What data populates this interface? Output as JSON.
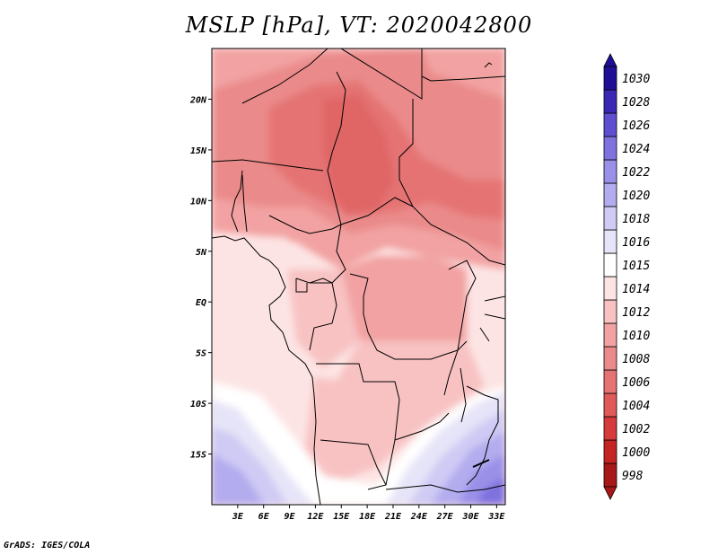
{
  "title": "MSLP [hPa], VT: 2020042800",
  "footer": "GrADS: IGES/COLA",
  "colorbar": {
    "levels": [
      "998",
      "1000",
      "1002",
      "1004",
      "1006",
      "1008",
      "1010",
      "1012",
      "1014",
      "1015",
      "1016",
      "1018",
      "1020",
      "1022",
      "1024",
      "1026",
      "1028",
      "1030"
    ],
    "colors": [
      "#a81818",
      "#c42424",
      "#d63a3a",
      "#e05a5a",
      "#e57373",
      "#ea8a8a",
      "#f2a2a2",
      "#f8c2c2",
      "#fde4e4",
      "#ffffff",
      "#e6e4f8",
      "#cfcbf4",
      "#b3acee",
      "#9a90e8",
      "#7f71de",
      "#5e4ed0",
      "#3a28b4",
      "#1f0f96"
    ]
  },
  "map": {
    "lat_labels": [
      "20N",
      "15N",
      "10N",
      "5N",
      "EQ",
      "5S",
      "10S",
      "15S"
    ],
    "lat_values": [
      20,
      15,
      10,
      5,
      0,
      -5,
      -10,
      -15
    ],
    "lon_labels": [
      "3E",
      "6E",
      "9E",
      "12E",
      "15E",
      "18E",
      "21E",
      "24E",
      "27E",
      "30E",
      "33E"
    ],
    "lon_values": [
      3,
      6,
      9,
      12,
      15,
      18,
      21,
      24,
      27,
      30,
      33
    ],
    "lon_range": [
      0,
      34
    ],
    "lat_range": [
      -20,
      25
    ]
  }
}
